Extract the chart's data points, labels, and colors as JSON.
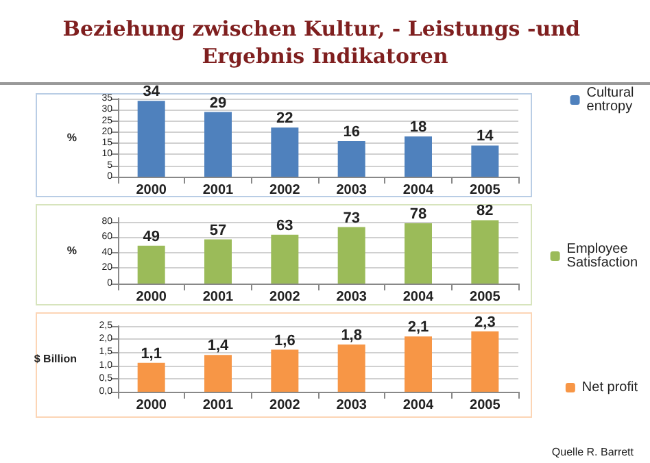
{
  "chart_data": [
    {
      "type": "bar",
      "title": "Beziehung zwischen Kultur, - Leistungs -und Ergebnis Indikatoren",
      "ylabel": "%",
      "categories": [
        "2000",
        "2001",
        "2002",
        "2003",
        "2004",
        "2005"
      ],
      "series": [
        {
          "name": "Cultural entropy",
          "color": "#4f81bd",
          "values": [
            34,
            29,
            22,
            16,
            18,
            14
          ]
        }
      ],
      "ylim": [
        0,
        35
      ],
      "yticks": [
        0,
        5,
        10,
        15,
        20,
        25,
        30,
        35
      ],
      "grid": "y",
      "legend": "right",
      "data_labels": true
    },
    {
      "type": "bar",
      "ylabel": "%",
      "categories": [
        "2000",
        "2001",
        "2002",
        "2003",
        "2004",
        "2005"
      ],
      "series": [
        {
          "name": "Employee Satisfaction",
          "color": "#9bbb59",
          "values": [
            49,
            57,
            63,
            73,
            78,
            82
          ]
        }
      ],
      "ylim": [
        0,
        85
      ],
      "yticks": [
        0,
        20,
        40,
        60,
        80
      ],
      "grid": "y",
      "legend": "right",
      "data_labels": true
    },
    {
      "type": "bar",
      "ylabel": "$ Billion",
      "categories": [
        "2000",
        "2001",
        "2002",
        "2003",
        "2004",
        "2005"
      ],
      "series": [
        {
          "name": "Net profit",
          "color": "#f79646",
          "values": [
            1.1,
            1.4,
            1.6,
            1.8,
            2.1,
            2.3
          ],
          "value_labels": [
            "1,1",
            "1,4",
            "1,6",
            "1,8",
            "2,1",
            "2,3"
          ]
        }
      ],
      "ylim": [
        0,
        2.5
      ],
      "yticks": [
        {
          "value": 0,
          "label": "0,0"
        },
        {
          "value": 0.5,
          "label": "0,5"
        },
        {
          "value": 1,
          "label": "1,0"
        },
        {
          "value": 1.5,
          "label": "1,5"
        },
        {
          "value": 2,
          "label": "2,0"
        },
        {
          "value": 2.5,
          "label": "2,5"
        }
      ],
      "grid": "y",
      "legend": "right",
      "annotations": [
        "Quelle R. Barrett"
      ]
    }
  ]
}
